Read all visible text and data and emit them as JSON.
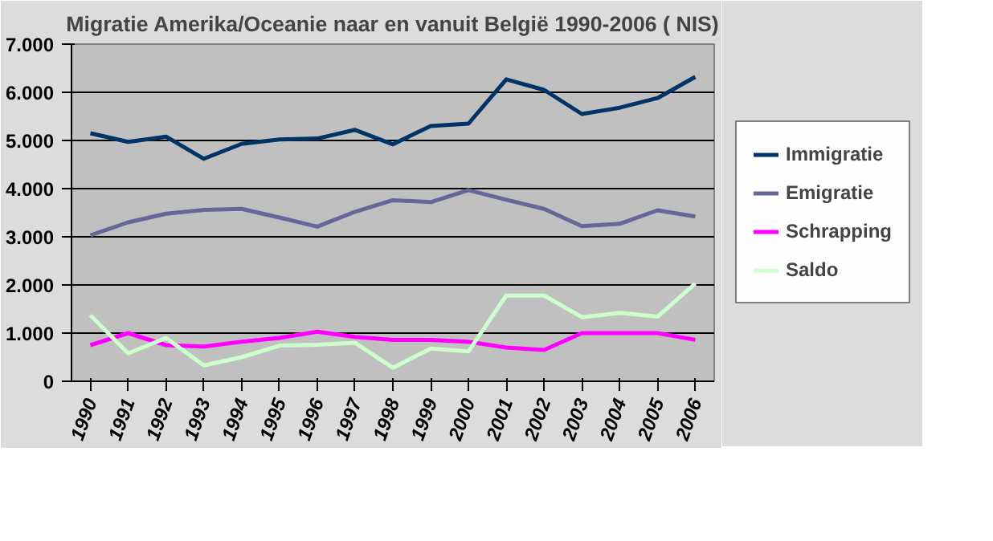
{
  "chart_data": {
    "type": "line",
    "title": "Migratie Amerika/Oceanie naar en vanuit België 1990-2006 ( NIS)",
    "categories": [
      "1990",
      "1991",
      "1992",
      "1993",
      "1994",
      "1995",
      "1996",
      "1997",
      "1998",
      "1999",
      "2000",
      "2001",
      "2002",
      "2003",
      "2004",
      "2005",
      "2006"
    ],
    "series": [
      {
        "name": "Immigratie",
        "color": "#003366",
        "values": [
          5150,
          4970,
          5080,
          4620,
          4930,
          5020,
          5040,
          5220,
          4920,
          5300,
          5350,
          6270,
          6050,
          5550,
          5680,
          5880,
          6320
        ]
      },
      {
        "name": "Emigratie",
        "color": "#666699",
        "values": [
          3030,
          3300,
          3480,
          3560,
          3580,
          3400,
          3210,
          3520,
          3760,
          3720,
          3970,
          3770,
          3580,
          3220,
          3270,
          3550,
          3420
        ]
      },
      {
        "name": "Schrapping",
        "color": "#ff00ff",
        "values": [
          750,
          1000,
          750,
          720,
          820,
          900,
          1030,
          920,
          860,
          860,
          820,
          700,
          650,
          1000,
          1000,
          1000,
          860
        ]
      },
      {
        "name": "Saldo",
        "color": "#ccffcc",
        "values": [
          1370,
          580,
          900,
          330,
          500,
          740,
          760,
          800,
          280,
          680,
          620,
          1780,
          1780,
          1330,
          1420,
          1340,
          2030
        ]
      }
    ],
    "ylim": [
      0,
      7000
    ],
    "yticks": [
      0,
      {
        "value": 1000,
        "label": "1.000"
      },
      {
        "value": 2000,
        "label": "2.000"
      },
      {
        "value": 3000,
        "label": "3.000"
      },
      {
        "value": 4000,
        "label": "4.000"
      },
      {
        "value": 5000,
        "label": "5.000"
      },
      {
        "value": 6000,
        "label": "6.000"
      },
      {
        "value": 7000,
        "label": "7.000"
      }
    ],
    "grid": "y",
    "legend": "right",
    "marker": "none",
    "line_style": "solid"
  }
}
